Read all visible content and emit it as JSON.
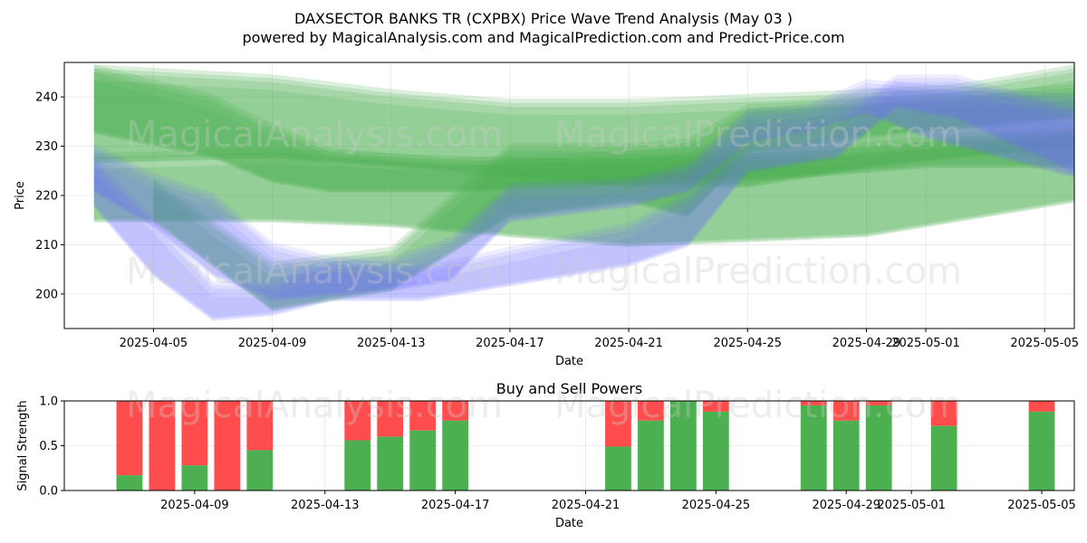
{
  "chart_data": [
    {
      "type": "area",
      "title": "DAXSECTOR BANKS TR (CXPBX) Price Wave Trend Analysis (May 03 )",
      "subtitle": "powered by MagicalAnalysis.com and MagicalPrediction.com and Predict-Price.com",
      "xlabel": "Date",
      "ylabel": "Price",
      "ylim": [
        193,
        247
      ],
      "xlim_dates": [
        "2025-04-02",
        "2025-05-06"
      ],
      "x_ticks": [
        "2025-04-05",
        "2025-04-09",
        "2025-04-13",
        "2025-04-17",
        "2025-04-21",
        "2025-04-25",
        "2025-04-29",
        "2025-05-01",
        "2025-05-05"
      ],
      "y_ticks": [
        200,
        210,
        220,
        230,
        240
      ],
      "grid": true,
      "series": [
        {
          "name": "green-wave-1",
          "color": "#4caf50",
          "x": [
            "2025-04-03",
            "2025-04-07",
            "2025-04-09",
            "2025-04-11",
            "2025-04-15",
            "2025-04-19",
            "2025-04-23",
            "2025-04-27",
            "2025-05-01",
            "2025-05-06"
          ],
          "upper": [
            245,
            239,
            233,
            228,
            226,
            227,
            228,
            229,
            231,
            232
          ],
          "lower": [
            233,
            228,
            223,
            221,
            221,
            222,
            223,
            224,
            226,
            226
          ]
        },
        {
          "name": "green-wave-2",
          "color": "#4caf50",
          "x": [
            "2025-04-03",
            "2025-04-09",
            "2025-04-13",
            "2025-04-17",
            "2025-04-21",
            "2025-04-25",
            "2025-04-29",
            "2025-05-02",
            "2025-05-06"
          ],
          "upper": [
            245,
            243,
            240,
            238,
            238,
            239,
            240,
            241,
            245
          ],
          "lower": [
            227,
            228,
            226,
            224,
            222,
            222,
            226,
            228,
            230
          ]
        },
        {
          "name": "green-wave-3",
          "color": "#4caf50",
          "x": [
            "2025-04-03",
            "2025-04-09",
            "2025-04-13",
            "2025-04-17",
            "2025-04-21",
            "2025-04-25",
            "2025-04-29",
            "2025-05-02",
            "2025-05-06"
          ],
          "upper": [
            227,
            228,
            227,
            226,
            226,
            227,
            228,
            230,
            232
          ],
          "lower": [
            215,
            215,
            214,
            212,
            210,
            211,
            212,
            215,
            219
          ]
        },
        {
          "name": "green-wave-4",
          "color": "#4caf50",
          "x": [
            "2025-04-05",
            "2025-04-09",
            "2025-04-13",
            "2025-04-17",
            "2025-04-21",
            "2025-04-23",
            "2025-04-25",
            "2025-04-29",
            "2025-05-06"
          ],
          "upper": [
            222,
            205,
            208,
            229,
            229,
            230,
            237,
            238,
            241
          ],
          "lower": [
            215,
            197,
            201,
            216,
            219,
            216,
            229,
            232,
            236
          ]
        },
        {
          "name": "blue-wave-1",
          "color": "#6c6cff",
          "x": [
            "2025-04-03",
            "2025-04-05",
            "2025-04-07",
            "2025-04-09",
            "2025-04-11",
            "2025-04-13",
            "2025-04-15",
            "2025-04-17",
            "2025-04-21",
            "2025-04-23",
            "2025-04-25",
            "2025-04-27",
            "2025-04-29",
            "2025-05-01",
            "2025-05-06"
          ],
          "upper": [
            229,
            223,
            219,
            209,
            206,
            206,
            210,
            221,
            222,
            225,
            236,
            237,
            242,
            241,
            239
          ],
          "lower": [
            221,
            214,
            204,
            199,
            200,
            201,
            203,
            215,
            218,
            221,
            231,
            233,
            237,
            232,
            224
          ]
        },
        {
          "name": "blue-wave-2",
          "color": "#6c6cff",
          "x": [
            "2025-04-03",
            "2025-04-05",
            "2025-04-07",
            "2025-04-09",
            "2025-04-11",
            "2025-04-14",
            "2025-04-17",
            "2025-04-21",
            "2025-04-23",
            "2025-04-25",
            "2025-04-28",
            "2025-04-30",
            "2025-05-02",
            "2025-05-06"
          ],
          "upper": [
            226,
            214,
            201,
            201,
            206,
            204,
            208,
            213,
            219,
            230,
            234,
            243,
            243,
            236
          ],
          "lower": [
            218,
            204,
            195,
            196,
            199,
            199,
            202,
            206,
            210,
            225,
            228,
            238,
            236,
            225
          ]
        }
      ]
    },
    {
      "type": "bar",
      "title": "Buy and Sell Powers",
      "xlabel": "Date",
      "ylabel": "Signal Strength",
      "ylim": [
        0,
        1
      ],
      "y_ticks": [
        "0.0",
        "0.5",
        "1.0"
      ],
      "x_ticks": [
        "2025-04-09",
        "2025-04-13",
        "2025-04-17",
        "2025-04-21",
        "2025-04-25",
        "2025-04-29",
        "2025-05-01",
        "2025-05-05"
      ],
      "xlim_dates": [
        "2025-04-05",
        "2025-05-06"
      ],
      "buy_color": "#4caf50",
      "sell_color": "#ff4d4d",
      "dates": [
        "2025-04-07",
        "2025-04-08",
        "2025-04-09",
        "2025-04-10",
        "2025-04-11",
        "2025-04-14",
        "2025-04-15",
        "2025-04-16",
        "2025-04-17",
        "2025-04-22",
        "2025-04-23",
        "2025-04-24",
        "2025-04-25",
        "2025-04-28",
        "2025-04-29",
        "2025-04-30",
        "2025-05-02",
        "2025-05-05"
      ],
      "buy": [
        0.17,
        0.0,
        0.28,
        0.0,
        0.45,
        0.56,
        0.6,
        0.67,
        0.78,
        0.49,
        0.78,
        1.0,
        0.88,
        0.95,
        0.78,
        0.95,
        0.72,
        0.88
      ]
    }
  ],
  "watermarks": [
    "MagicalAnalysis.com",
    "MagicalPrediction.com"
  ]
}
